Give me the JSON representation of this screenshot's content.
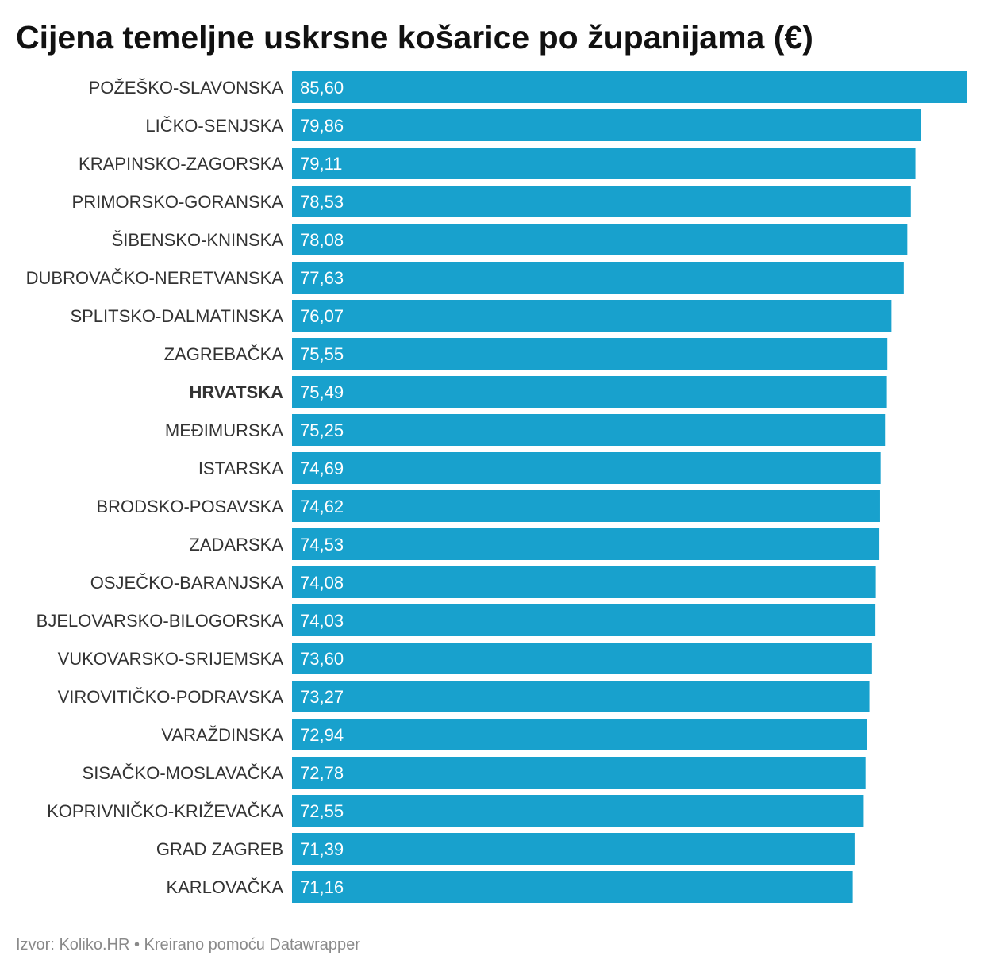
{
  "colors": {
    "bar": "#18a1cd",
    "title": "#111111",
    "category_label": "#333333",
    "value_label": "#ffffff",
    "footer": "#8a8a8a"
  },
  "footer": {
    "source_label": "Izvor:",
    "source_name": "Koliko.HR",
    "separator": "•",
    "credit": "Kreirano pomoću Datawrapper"
  },
  "chart_data": {
    "type": "bar",
    "orientation": "horizontal",
    "title": "Cijena temeljne uskrsne košarice po županijama (€)",
    "xlabel": "",
    "ylabel": "",
    "categories": [
      "POŽEŠKO-SLAVONSKA",
      "LIČKO-SENJSKA",
      "KRAPINSKO-ZAGORSKA",
      "PRIMORSKO-GORANSKA",
      "ŠIBENSKO-KNINSKA",
      "DUBROVAČKO-NERETVANSKA",
      "SPLITSKO-DALMATINSKA",
      "ZAGREBAČKA",
      "HRVATSKA",
      "MEĐIMURSKA",
      "ISTARSKA",
      "BRODSKO-POSAVSKA",
      "ZADARSKA",
      "OSJEČKO-BARANJSKA",
      "BJELOVARSKO-BILOGORSKA",
      "VUKOVARSKO-SRIJEMSKA",
      "VIROVITIČKO-PODRAVSKA",
      "VARAŽDINSKA",
      "SISAČKO-MOSLAVAČKA",
      "KOPRIVNIČKO-KRIŽEVAČKA",
      "GRAD ZAGREB",
      "KARLOVAČKA"
    ],
    "values": [
      85.6,
      79.86,
      79.11,
      78.53,
      78.08,
      77.63,
      76.07,
      75.55,
      75.49,
      75.25,
      74.69,
      74.62,
      74.53,
      74.08,
      74.03,
      73.6,
      73.27,
      72.94,
      72.78,
      72.55,
      71.39,
      71.16
    ],
    "value_labels": [
      "85,60",
      "79,86",
      "79,11",
      "78,53",
      "78,08",
      "77,63",
      "76,07",
      "75,55",
      "75,49",
      "75,25",
      "74,69",
      "74,62",
      "74,53",
      "74,08",
      "74,03",
      "73,60",
      "73,27",
      "72,94",
      "72,78",
      "72,55",
      "71,39",
      "71,16"
    ],
    "bold_labels": [
      "HRVATSKA"
    ],
    "xlim": [
      0,
      85.6
    ],
    "grid": false,
    "legend": false
  }
}
